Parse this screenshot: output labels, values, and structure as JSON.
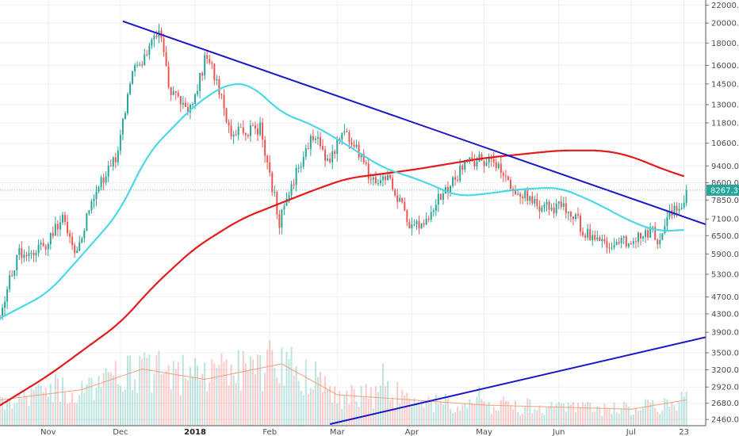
{
  "chart_data": {
    "type": "candlestick",
    "grid": true,
    "y_scale": "log",
    "ylim": [
      2400,
      22600
    ],
    "y_ticks": [
      "2460.0",
      "2680.0",
      "2920.0",
      "3200.0",
      "3500.0",
      "3900.0",
      "4300.0",
      "4700.0",
      "5300.0",
      "5900.0",
      "6500.0",
      "7100.0",
      "7850.0",
      "8600.0",
      "9400.0",
      "10600.0",
      "11800.0",
      "13000.0",
      "14500.0",
      "16000.0",
      "18000.0",
      "20000.0",
      "22000.0"
    ],
    "x_ticks": [
      {
        "label": "Nov",
        "date": "2017-11-01",
        "bold": false
      },
      {
        "label": "Dec",
        "date": "2017-12-01",
        "bold": false
      },
      {
        "label": "2018",
        "date": "2018-01-01",
        "bold": true
      },
      {
        "label": "Feb",
        "date": "2018-02-01",
        "bold": false
      },
      {
        "label": "Mar",
        "date": "2018-03-01",
        "bold": false
      },
      {
        "label": "Apr",
        "date": "2018-04-01",
        "bold": false
      },
      {
        "label": "May",
        "date": "2018-05-01",
        "bold": false
      },
      {
        "label": "Jun",
        "date": "2018-06-01",
        "bold": false
      },
      {
        "label": "Jul",
        "date": "2018-07-01",
        "bold": false
      },
      {
        "label": "23",
        "date": "2018-07-23",
        "bold": false
      }
    ],
    "date_range": [
      "2017-10-12",
      "2018-08-01"
    ],
    "last_price": {
      "label": "8267.3",
      "value": 8267.3
    },
    "colors": {
      "up": "#26a69a",
      "down": "#ef5350",
      "ma_short": "#4dd8e6",
      "ma_long": "#e31a1c",
      "trendline": "#1a16c8",
      "volume_ma": "#f5a07a",
      "last_price_bg": "#26a69a"
    },
    "price_anchors": [
      {
        "date": "2017-10-12",
        "close": 4400
      },
      {
        "date": "2017-10-20",
        "close": 5900
      },
      {
        "date": "2017-10-30",
        "close": 6100
      },
      {
        "date": "2017-11-07",
        "close": 7200
      },
      {
        "date": "2017-11-12",
        "close": 5900
      },
      {
        "date": "2017-11-20",
        "close": 8100
      },
      {
        "date": "2017-11-29",
        "close": 9800
      },
      {
        "date": "2017-12-07",
        "close": 16000
      },
      {
        "date": "2017-12-11",
        "close": 16500
      },
      {
        "date": "2017-12-17",
        "close": 19200
      },
      {
        "date": "2017-12-22",
        "close": 13800
      },
      {
        "date": "2017-12-30",
        "close": 12800
      },
      {
        "date": "2018-01-06",
        "close": 17000
      },
      {
        "date": "2018-01-16",
        "close": 11200
      },
      {
        "date": "2018-01-28",
        "close": 11500
      },
      {
        "date": "2018-02-05",
        "close": 7000
      },
      {
        "date": "2018-02-10",
        "close": 8500
      },
      {
        "date": "2018-02-19",
        "close": 11100
      },
      {
        "date": "2018-02-25",
        "close": 9600
      },
      {
        "date": "2018-03-04",
        "close": 11400
      },
      {
        "date": "2018-03-18",
        "close": 8300
      },
      {
        "date": "2018-03-22",
        "close": 8900
      },
      {
        "date": "2018-03-31",
        "close": 6900
      },
      {
        "date": "2018-04-06",
        "close": 6700
      },
      {
        "date": "2018-04-12",
        "close": 7900
      },
      {
        "date": "2018-04-24",
        "close": 9600
      },
      {
        "date": "2018-05-05",
        "close": 9800
      },
      {
        "date": "2018-05-12",
        "close": 8500
      },
      {
        "date": "2018-05-24",
        "close": 7500
      },
      {
        "date": "2018-06-05",
        "close": 7600
      },
      {
        "date": "2018-06-12",
        "close": 6600
      },
      {
        "date": "2018-06-24",
        "close": 6100
      },
      {
        "date": "2018-07-01",
        "close": 6400
      },
      {
        "date": "2018-07-09",
        "close": 6700
      },
      {
        "date": "2018-07-13",
        "close": 6250
      },
      {
        "date": "2018-07-17",
        "close": 7350
      },
      {
        "date": "2018-07-21",
        "close": 7400
      },
      {
        "date": "2018-07-24",
        "close": 8267
      }
    ],
    "ma_short_points": [
      {
        "date": "2017-10-12",
        "value": 4200
      },
      {
        "date": "2017-11-01",
        "value": 4800
      },
      {
        "date": "2017-11-20",
        "value": 6300
      },
      {
        "date": "2017-12-01",
        "value": 7400
      },
      {
        "date": "2017-12-12",
        "value": 10000
      },
      {
        "date": "2018-01-01",
        "value": 13000
      },
      {
        "date": "2018-01-15",
        "value": 14600
      },
      {
        "date": "2018-01-25",
        "value": 14400
      },
      {
        "date": "2018-02-05",
        "value": 12500
      },
      {
        "date": "2018-02-20",
        "value": 11600
      },
      {
        "date": "2018-03-05",
        "value": 10500
      },
      {
        "date": "2018-03-20",
        "value": 9300
      },
      {
        "date": "2018-04-05",
        "value": 8700
      },
      {
        "date": "2018-04-20",
        "value": 8000
      },
      {
        "date": "2018-05-01",
        "value": 8100
      },
      {
        "date": "2018-05-15",
        "value": 8300
      },
      {
        "date": "2018-06-01",
        "value": 8400
      },
      {
        "date": "2018-06-15",
        "value": 7800
      },
      {
        "date": "2018-07-01",
        "value": 7000
      },
      {
        "date": "2018-07-12",
        "value": 6650
      },
      {
        "date": "2018-07-23",
        "value": 6700
      }
    ],
    "ma_long_points": [
      {
        "date": "2017-10-12",
        "value": 2650
      },
      {
        "date": "2017-11-01",
        "value": 3100
      },
      {
        "date": "2017-12-01",
        "value": 4100
      },
      {
        "date": "2017-12-15",
        "value": 5000
      },
      {
        "date": "2018-01-01",
        "value": 6100
      },
      {
        "date": "2018-01-20",
        "value": 7100
      },
      {
        "date": "2018-02-05",
        "value": 7700
      },
      {
        "date": "2018-02-20",
        "value": 8300
      },
      {
        "date": "2018-03-05",
        "value": 8800
      },
      {
        "date": "2018-04-01",
        "value": 9200
      },
      {
        "date": "2018-05-01",
        "value": 9800
      },
      {
        "date": "2018-06-01",
        "value": 10200
      },
      {
        "date": "2018-06-20",
        "value": 10200
      },
      {
        "date": "2018-07-01",
        "value": 9900
      },
      {
        "date": "2018-07-15",
        "value": 9200
      },
      {
        "date": "2018-07-23",
        "value": 8900
      }
    ],
    "trendlines": [
      {
        "start": {
          "date": "2017-12-02",
          "value": 20200
        },
        "end": {
          "date": "2018-08-01",
          "value": 6900
        }
      },
      {
        "start": {
          "date": "2018-02-26",
          "value": 2400
        },
        "end": {
          "date": "2018-08-01",
          "value": 3800
        }
      }
    ],
    "volume": {
      "description_anchors": [
        {
          "date": "2017-10-12",
          "level": 0.25
        },
        {
          "date": "2017-11-15",
          "level": 0.35
        },
        {
          "date": "2017-12-10",
          "level": 0.55
        },
        {
          "date": "2018-01-05",
          "level": 0.45
        },
        {
          "date": "2018-02-06",
          "level": 0.6
        },
        {
          "date": "2018-03-01",
          "level": 0.3
        },
        {
          "date": "2018-04-01",
          "level": 0.25
        },
        {
          "date": "2018-05-01",
          "level": 0.2
        },
        {
          "date": "2018-06-01",
          "level": 0.18
        },
        {
          "date": "2018-07-01",
          "level": 0.16
        },
        {
          "date": "2018-07-24",
          "level": 0.25
        }
      ]
    }
  }
}
